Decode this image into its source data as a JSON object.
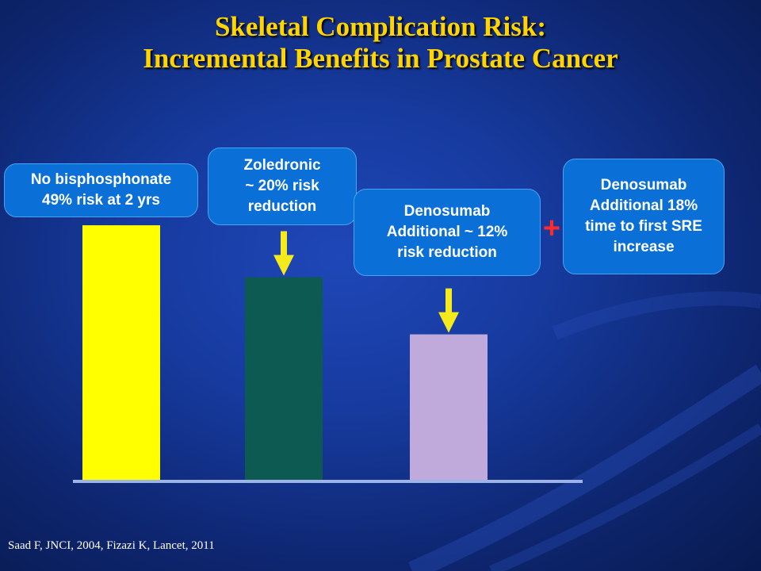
{
  "title_line1": "Skeletal Complication Risk:",
  "title_line2": "Incremental Benefits in Prostate Cancer",
  "callouts": {
    "no_bisphosphonate": {
      "line1": "No bisphosphonate",
      "line2": "49% risk at 2 yrs"
    },
    "zoledronic": {
      "line1": "Zoledronic",
      "line2": "~ 20% risk",
      "line3": "reduction"
    },
    "denosumab_risk": {
      "line1": "Denosumab",
      "line2": "Additional ~ 12%",
      "line3": "risk reduction"
    },
    "denosumab_time": {
      "line1": "Denosumab",
      "line2": "Additional 18%",
      "line3": "time to first SRE",
      "line4": "increase"
    }
  },
  "plus_sign": "+",
  "citation": "Saad F, JNCI, 2004, Fizazi K, Lancet, 2011",
  "colors": {
    "title": "#ffd400",
    "callout_fill": "#0a6fd6",
    "arrow": "#f5ea1b",
    "plus": "#ff2a2a"
  },
  "chart_data": {
    "type": "bar",
    "categories": [
      "No bisphosphonate",
      "Zoledronic",
      "Denosumab"
    ],
    "values": [
      49,
      39,
      28
    ],
    "ylim": [
      0,
      60
    ],
    "bar_colors": [
      "#ffff00",
      "#0c5a52",
      "#c0aadc"
    ],
    "grid": false,
    "arrows_on": [
      "Zoledronic",
      "Denosumab"
    ]
  }
}
